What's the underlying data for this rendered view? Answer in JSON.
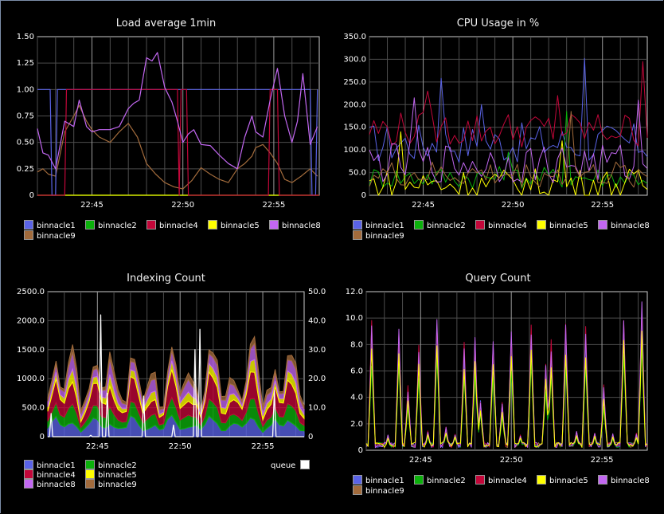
{
  "colors": {
    "binnacle1": "#5a63e6",
    "binnacle2": "#0bb10b",
    "binnacle4": "#c3073a",
    "binnacle5": "#ffff00",
    "binnacle8": "#c267f1",
    "binnacle9": "#a26b3c",
    "queue": "#ffffff"
  },
  "chart_data": [
    {
      "id": "load",
      "type": "line",
      "title": "Load average 1min",
      "x_ticks": [
        "22:45",
        "22:50",
        "22:55"
      ],
      "y_ticks": [
        "1.50",
        "1.25",
        "1.00",
        "0.75",
        "0.50",
        "0.25",
        "0"
      ],
      "ylim": [
        0,
        1.5
      ],
      "x_range_min": [
        42.0,
        57.5
      ],
      "grid": true,
      "legend_position": "bottom",
      "series": [
        {
          "name": "binnacle1",
          "x": [
            42,
            42.7,
            42.8,
            43.0,
            43.1,
            57.0,
            57.1,
            57.3,
            57.4
          ],
          "values": [
            1,
            1,
            0,
            0,
            1,
            1,
            0,
            0,
            1
          ]
        },
        {
          "name": "binnacle2",
          "x": [
            42,
            57.5
          ],
          "values": [
            0,
            0
          ]
        },
        {
          "name": "binnacle4",
          "x": [
            42,
            43.5,
            43.6,
            49.7,
            49.8,
            49.9,
            50.2,
            50.3,
            54.7,
            54.8,
            55.2,
            55.3,
            57.5
          ],
          "values": [
            0,
            0,
            1,
            1,
            0,
            1,
            1,
            0,
            0,
            1,
            1,
            0,
            0
          ]
        },
        {
          "name": "binnacle5",
          "x": [
            42,
            57.5
          ],
          "values": [
            0,
            0
          ]
        },
        {
          "name": "binnacle8",
          "x": [
            42,
            42.3,
            42.6,
            43,
            43.5,
            44,
            44.3,
            44.7,
            45,
            45.4,
            46,
            46.5,
            47,
            47.3,
            47.6,
            48,
            48.3,
            48.6,
            49,
            49.4,
            49.7,
            50,
            50.3,
            50.6,
            51,
            51.5,
            52,
            52.5,
            53,
            53.4,
            53.8,
            54,
            54.4,
            54.8,
            55.2,
            55.6,
            56,
            56.3,
            56.6,
            57,
            57.4
          ],
          "values": [
            0.63,
            0.4,
            0.38,
            0.25,
            0.7,
            0.65,
            0.9,
            0.65,
            0.6,
            0.62,
            0.62,
            0.65,
            0.82,
            0.87,
            0.9,
            1.3,
            1.27,
            1.35,
            1.02,
            0.88,
            0.7,
            0.5,
            0.58,
            0.62,
            0.48,
            0.47,
            0.38,
            0.3,
            0.25,
            0.55,
            0.75,
            0.6,
            0.55,
            0.9,
            1.2,
            0.75,
            0.5,
            0.7,
            1.15,
            0.48,
            0.65
          ]
        },
        {
          "name": "binnacle9",
          "x": [
            42,
            42.3,
            42.6,
            43,
            43.5,
            44,
            44.3,
            44.7,
            45,
            45.4,
            46,
            46.5,
            47,
            47.5,
            48,
            48.5,
            49,
            49.5,
            50,
            50.5,
            51,
            51.5,
            52,
            52.5,
            53,
            53.4,
            53.8,
            54,
            54.4,
            54.8,
            55.2,
            55.6,
            56,
            56.5,
            57,
            57.4
          ],
          "values": [
            0.22,
            0.25,
            0.2,
            0.18,
            0.6,
            0.75,
            0.85,
            0.7,
            0.62,
            0.55,
            0.5,
            0.6,
            0.68,
            0.55,
            0.3,
            0.2,
            0.12,
            0.08,
            0.06,
            0.14,
            0.26,
            0.2,
            0.15,
            0.12,
            0.25,
            0.3,
            0.37,
            0.45,
            0.48,
            0.4,
            0.3,
            0.15,
            0.12,
            0.18,
            0.25,
            0.18
          ]
        }
      ],
      "legend": [
        "binnacle1",
        "binnacle2",
        "binnacle4",
        "binnacle5",
        "binnacle8",
        "binnacle9"
      ]
    },
    {
      "id": "cpu",
      "type": "line",
      "title": "CPU Usage in %",
      "x_ticks": [
        "22:45",
        "22:50",
        "22:55"
      ],
      "y_ticks": [
        "350.0",
        "300.0",
        "250.0",
        "200.0",
        "150.0",
        "100.0",
        "50.0",
        "0"
      ],
      "ylim": [
        0,
        350
      ],
      "x_range_min": [
        42.0,
        57.5
      ],
      "grid": true,
      "legend_position": "bottom",
      "series_noise": [
        {
          "name": "binnacle1",
          "base": 115,
          "amp": 45,
          "peaks": [
            [
              45.9,
              258
            ],
            [
              53.9,
              302
            ],
            [
              48.3,
              200
            ]
          ]
        },
        {
          "name": "binnacle2",
          "base": 40,
          "amp": 25,
          "peaks": [
            [
              53.0,
              185
            ],
            [
              49.8,
              95
            ]
          ]
        },
        {
          "name": "binnacle4",
          "base": 145,
          "amp": 40,
          "peaks": [
            [
              57.3,
              295
            ],
            [
              45.3,
              230
            ],
            [
              52.6,
              220
            ]
          ]
        },
        {
          "name": "binnacle5",
          "base": 25,
          "amp": 35,
          "peaks": [
            [
              52.8,
              120
            ],
            [
              43.8,
              140
            ]
          ]
        },
        {
          "name": "binnacle8",
          "base": 70,
          "amp": 45,
          "peaks": [
            [
              44.5,
              215
            ],
            [
              57.0,
              210
            ]
          ]
        },
        {
          "name": "binnacle9",
          "base": 45,
          "amp": 30,
          "peaks": [
            [
              53.3,
              185
            ]
          ]
        }
      ],
      "legend": [
        "binnacle1",
        "binnacle2",
        "binnacle4",
        "binnacle5",
        "binnacle8",
        "binnacle9"
      ]
    },
    {
      "id": "indexing",
      "type": "area",
      "title": "Indexing Count",
      "x_ticks": [
        "22:45",
        "22:50",
        "22:55"
      ],
      "y_ticks": [
        "2500.0",
        "2000.0",
        "1500.0",
        "1000.0",
        "500.0",
        "0"
      ],
      "y2_ticks": [
        "50.0",
        "40.0",
        "30.0",
        "20.0",
        "10.0",
        "0"
      ],
      "ylim": [
        0,
        2500
      ],
      "y2lim": [
        0,
        50
      ],
      "x_range_min": [
        42.0,
        57.5
      ],
      "grid": true,
      "stack_levels": [
        {
          "name": "binnacle1",
          "level": 320
        },
        {
          "name": "binnacle2",
          "level": 300
        },
        {
          "name": "binnacle4",
          "level": 420
        },
        {
          "name": "binnacle5",
          "level": 180
        },
        {
          "name": "binnacle8",
          "level": 230
        },
        {
          "name": "binnacle9",
          "level": 110
        }
      ],
      "queue_spikes": [
        [
          42.2,
          8
        ],
        [
          44.6,
          0.5
        ],
        [
          45.2,
          42
        ],
        [
          45.6,
          15
        ],
        [
          47.8,
          14
        ],
        [
          49.6,
          4
        ],
        [
          50.9,
          30
        ],
        [
          51.2,
          37
        ],
        [
          55.7,
          16
        ]
      ],
      "legend": [
        "binnacle1",
        "binnacle2",
        "binnacle4",
        "binnacle5",
        "binnacle8",
        "binnacle9"
      ],
      "legend_right": "queue"
    },
    {
      "id": "query",
      "type": "line",
      "title": "Query Count",
      "x_ticks": [
        "22:45",
        "22:50",
        "22:55"
      ],
      "y_ticks": [
        "12.0",
        "10.0",
        "8.0",
        "6.0",
        "4.0",
        "2.0",
        "0"
      ],
      "ylim": [
        0,
        12
      ],
      "x_range_min": [
        42.0,
        57.5
      ],
      "grid": true,
      "legend_position": "bottom",
      "peaks": [
        [
          42.3,
          10.0
        ],
        [
          43.2,
          1.2
        ],
        [
          43.8,
          9.6
        ],
        [
          44.3,
          5.0
        ],
        [
          44.9,
          8.2
        ],
        [
          45.4,
          1.5
        ],
        [
          45.9,
          10.5
        ],
        [
          46.4,
          1.8
        ],
        [
          46.9,
          1.3
        ],
        [
          47.4,
          8.4
        ],
        [
          48.0,
          9.0
        ],
        [
          48.3,
          4.0
        ],
        [
          49.0,
          8.6
        ],
        [
          49.5,
          3.8
        ],
        [
          50.0,
          9.4
        ],
        [
          50.5,
          1.2
        ],
        [
          51.1,
          9.6
        ],
        [
          51.9,
          6.8
        ],
        [
          52.2,
          8.4
        ],
        [
          53.0,
          9.8
        ],
        [
          53.6,
          1.5
        ],
        [
          54.1,
          9.6
        ],
        [
          54.6,
          1.4
        ],
        [
          55.1,
          5.0
        ],
        [
          55.6,
          1.3
        ],
        [
          56.2,
          10.5
        ],
        [
          56.9,
          1.3
        ],
        [
          57.2,
          11.8
        ]
      ],
      "legend": [
        "binnacle1",
        "binnacle2",
        "binnacle4",
        "binnacle5",
        "binnacle8",
        "binnacle9"
      ]
    }
  ]
}
